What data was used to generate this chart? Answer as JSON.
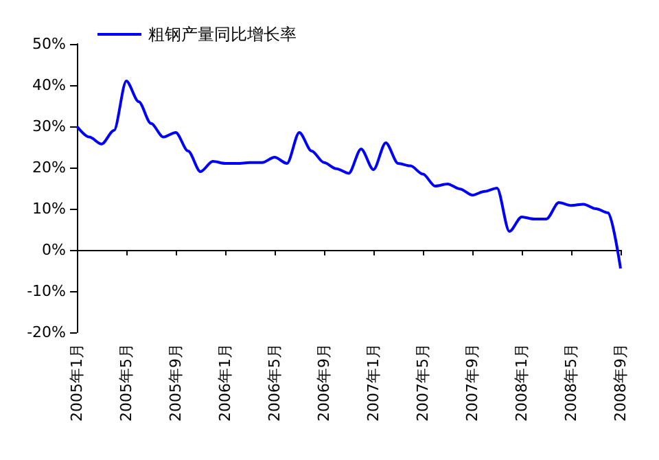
{
  "chart_data": {
    "type": "line",
    "categories": [
      "2005年1月",
      null,
      null,
      null,
      "2005年5月",
      null,
      null,
      null,
      "2005年9月",
      null,
      null,
      null,
      "2006年1月",
      null,
      null,
      null,
      "2006年5月",
      null,
      null,
      null,
      "2006年9月",
      null,
      null,
      null,
      "2007年1月",
      null,
      null,
      null,
      "2007年5月",
      null,
      null,
      null,
      "2007年9月",
      null,
      null,
      null,
      "2008年1月",
      null,
      null,
      null,
      "2008年5月",
      null,
      null,
      null,
      "2008年9月"
    ],
    "series": [
      {
        "name": "粗钢产量同比增长率",
        "color": "#0000ff",
        "values": [
          30,
          27.4,
          25.7,
          29,
          41,
          36,
          30.7,
          27.4,
          28.5,
          24,
          19,
          21.5,
          21,
          21,
          21.2,
          21.2,
          22.5,
          21,
          28.5,
          24,
          21.2,
          19.7,
          18.6,
          24.5,
          19.5,
          26,
          21,
          20.4,
          18.4,
          15.5,
          16,
          14.8,
          13.3,
          14.2,
          15,
          4.5,
          8,
          7.5,
          7.5,
          11.5,
          10.8,
          11.1,
          10,
          9,
          -4.5
        ]
      }
    ],
    "ylim": [
      -20,
      50
    ],
    "yticks": [
      {
        "value": -20,
        "label": "-20%"
      },
      {
        "value": -10,
        "label": "-10%"
      },
      {
        "value": 0,
        "label": "0%"
      },
      {
        "value": 10,
        "label": "10%"
      },
      {
        "value": 20,
        "label": "20%"
      },
      {
        "value": 30,
        "label": "30%"
      },
      {
        "value": 40,
        "label": "40%"
      },
      {
        "value": 50,
        "label": "50%"
      }
    ],
    "legend": "top left",
    "marker": "none",
    "line_style": "solid"
  }
}
